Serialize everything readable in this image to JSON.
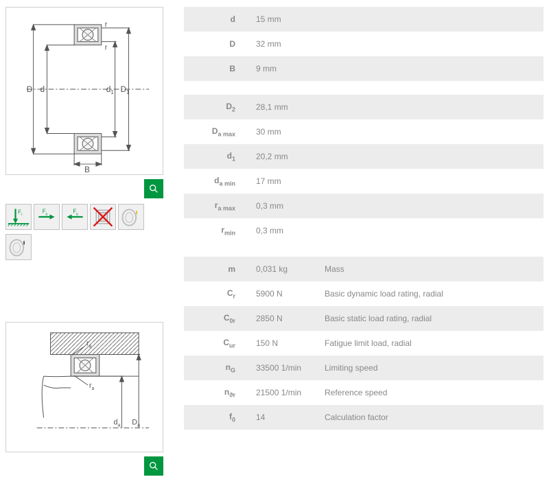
{
  "tables": {
    "primary": [
      {
        "symbol_html": "d",
        "value": "15",
        "unit": "mm"
      },
      {
        "symbol_html": "D",
        "value": "32",
        "unit": "mm"
      },
      {
        "symbol_html": "B",
        "value": "9",
        "unit": "mm"
      }
    ],
    "secondary": [
      {
        "symbol_html": "D<span class='sub'>2</span>",
        "value": "28,1",
        "unit": "mm"
      },
      {
        "symbol_html": "D<span class='sub'>a max</span>",
        "value": "30",
        "unit": "mm"
      },
      {
        "symbol_html": "d<span class='sub'>1</span>",
        "value": "20,2",
        "unit": "mm"
      },
      {
        "symbol_html": "d<span class='sub'>a min</span>",
        "value": "17",
        "unit": "mm"
      },
      {
        "symbol_html": "r<span class='sub'>a max</span>",
        "value": "0,3",
        "unit": "mm"
      },
      {
        "symbol_html": "r<span class='sub'>min</span>",
        "value": "0,3",
        "unit": "mm"
      }
    ],
    "performance": [
      {
        "symbol_html": "m",
        "value": "0,031",
        "unit": "kg",
        "desc": "Mass"
      },
      {
        "symbol_html": "C<span class='sub'>r</span>",
        "value": "5900",
        "unit": "N",
        "desc": "Basic dynamic load rating, radial"
      },
      {
        "symbol_html": "C<span class='sub'>0r</span>",
        "value": "2850",
        "unit": "N",
        "desc": "Basic static load rating, radial"
      },
      {
        "symbol_html": "C<span class='sub'>ur</span>",
        "value": "150",
        "unit": "N",
        "desc": "Fatigue limit load, radial"
      },
      {
        "symbol_html": "n<span class='sub'>G</span>",
        "value": "33500",
        "unit": "1/min",
        "desc": "Limiting speed"
      },
      {
        "symbol_html": "n<span class='sub'>ϑr</span>",
        "value": "21500",
        "unit": "1/min",
        "desc": "Reference speed"
      },
      {
        "symbol_html": "f<span class='sub'>0</span>",
        "value": "14",
        "unit": "",
        "desc": "Calculation factor"
      }
    ]
  },
  "icons": {
    "row1": [
      "radial-load-icon",
      "axial-load-right-icon",
      "axial-load-left-icon",
      "not-allowed-icon",
      "grease-icon"
    ],
    "row2": [
      "oil-icon"
    ]
  },
  "diagrams": {
    "d1_labels": {
      "D": "D",
      "d": "d",
      "d1": "d",
      "D1": "D",
      "B": "B",
      "r": "r"
    },
    "d2_labels": {
      "ra": "r",
      "da": "d",
      "Da": "D"
    }
  },
  "colors": {
    "accent": "#019640",
    "row_bg": "#ececec",
    "border": "#d0d0d0",
    "text": "#888888"
  }
}
